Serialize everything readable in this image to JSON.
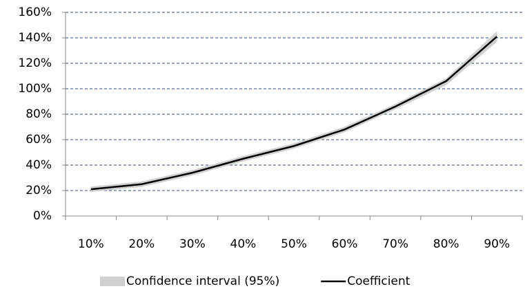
{
  "chart_data": {
    "type": "line",
    "categories": [
      "10%",
      "20%",
      "30%",
      "40%",
      "50%",
      "60%",
      "70%",
      "80%",
      "90%"
    ],
    "series": [
      {
        "name": "Confidence interval (95%)",
        "color": "#d0d0d0",
        "lower": [
          19,
          23,
          32,
          43,
          53,
          66,
          84,
          103,
          137
        ],
        "upper": [
          23,
          27,
          36,
          47,
          57,
          70,
          88,
          108,
          145
        ]
      },
      {
        "name": "Coefficient",
        "color": "#000000",
        "values": [
          21,
          25,
          34,
          45,
          55,
          68,
          86,
          106,
          141
        ]
      }
    ],
    "ylim": [
      0,
      160
    ],
    "yticks": [
      {
        "value": 0,
        "label": "0%"
      },
      {
        "value": 20,
        "label": "20%"
      },
      {
        "value": 40,
        "label": "40%"
      },
      {
        "value": 60,
        "label": "60%"
      },
      {
        "value": 80,
        "label": "80%"
      },
      {
        "value": 100,
        "label": "100%"
      },
      {
        "value": 120,
        "label": "120%"
      },
      {
        "value": 140,
        "label": "140%"
      },
      {
        "value": 160,
        "label": "160%"
      }
    ],
    "grid": true
  }
}
